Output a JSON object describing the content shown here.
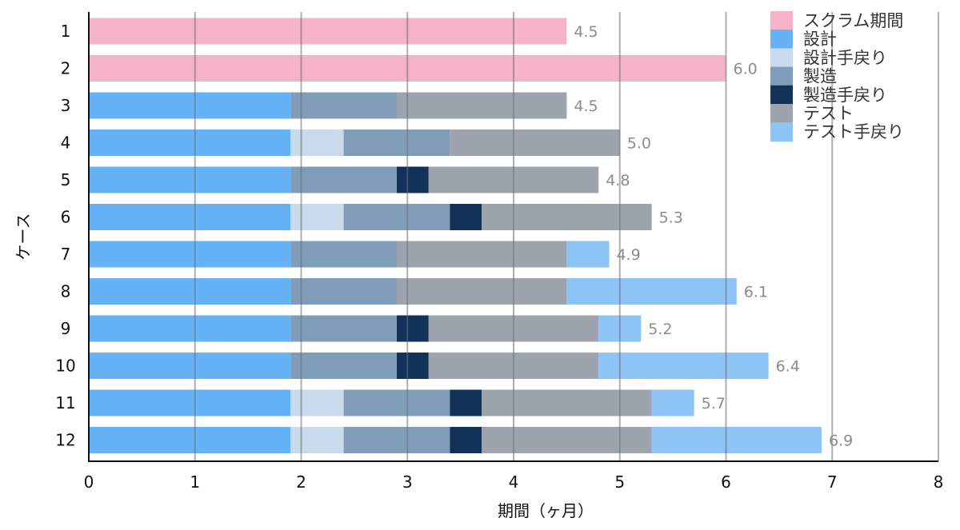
{
  "chart_data": {
    "type": "bar",
    "orientation": "horizontal",
    "stacked": true,
    "xlabel": "期間（ヶ月）",
    "ylabel": "ケース",
    "xlim": [
      0,
      8
    ],
    "x_ticks": [
      "0",
      "1",
      "2",
      "3",
      "4",
      "5",
      "6",
      "7",
      "8"
    ],
    "grid": "vertical",
    "legend_position": "top-right",
    "categories": [
      "1",
      "2",
      "3",
      "4",
      "5",
      "6",
      "7",
      "8",
      "9",
      "10",
      "11",
      "12"
    ],
    "series": [
      {
        "name": "スクラム期間",
        "color": "#f4b3c8",
        "values": [
          4.5,
          6.0,
          0,
          0,
          0,
          0,
          0,
          0,
          0,
          0,
          0,
          0
        ]
      },
      {
        "name": "設計",
        "color": "#66b2f7",
        "values": [
          0,
          0,
          1.9,
          1.9,
          1.9,
          1.9,
          1.9,
          1.9,
          1.9,
          1.9,
          1.9,
          1.9
        ]
      },
      {
        "name": "設計手戻り",
        "color": "#c9daec",
        "values": [
          0,
          0,
          0,
          0.5,
          0,
          0.5,
          0,
          0,
          0,
          0,
          0.5,
          0.5
        ]
      },
      {
        "name": "製造",
        "color": "#7f9db9",
        "values": [
          0,
          0,
          1.0,
          1.0,
          1.0,
          1.0,
          1.0,
          1.0,
          1.0,
          1.0,
          1.0,
          1.0
        ]
      },
      {
        "name": "製造手戻り",
        "color": "#12325a",
        "values": [
          0,
          0,
          0,
          0,
          0.3,
          0.3,
          0,
          0,
          0.3,
          0.3,
          0.3,
          0.3
        ]
      },
      {
        "name": "テスト",
        "color": "#9da4ae",
        "values": [
          0,
          0,
          1.6,
          1.6,
          1.6,
          1.6,
          1.6,
          1.6,
          1.6,
          1.6,
          1.6,
          1.6
        ]
      },
      {
        "name": "テスト手戻り",
        "color": "#8ec3f5",
        "values": [
          0,
          0,
          0,
          0,
          0,
          0,
          0.4,
          1.6,
          0.4,
          1.6,
          0.4,
          1.6
        ]
      }
    ],
    "totals": [
      "4.5",
      "6.0",
      "4.5",
      "5.0",
      "4.8",
      "5.3",
      "4.9",
      "6.1",
      "5.2",
      "6.4",
      "5.7",
      "6.9"
    ]
  }
}
